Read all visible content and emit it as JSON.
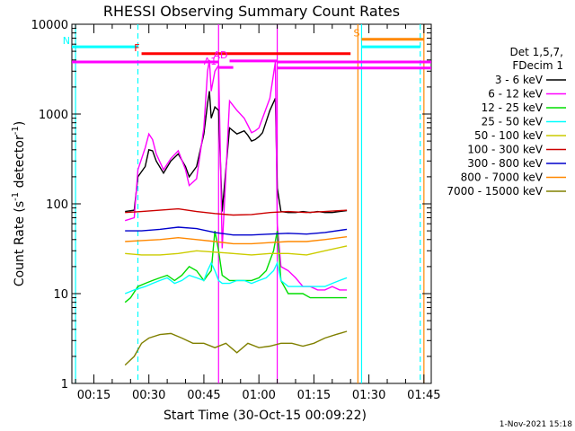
{
  "chart_data": {
    "type": "line",
    "title": "RHESSI Observing Summary Count Rates",
    "xlabel": "Start Time (30-Oct-15 00:09:22)",
    "ylabel": "Count Rate (s⁻¹ detector⁻¹)",
    "ylabel_base": "Count Rate (s",
    "ylabel_sup1": "-1",
    "ylabel_mid": " detector",
    "ylabel_sup2": "-1",
    "ylabel_end": ")",
    "y_scale": "log",
    "ylim": [
      1,
      10000
    ],
    "xlim_minutes": [
      9,
      107
    ],
    "x_ticks": [
      {
        "minute": 15,
        "label": "00:15"
      },
      {
        "minute": 30,
        "label": "00:30"
      },
      {
        "minute": 45,
        "label": "00:45"
      },
      {
        "minute": 60,
        "label": "01:00"
      },
      {
        "minute": 75,
        "label": "01:15"
      },
      {
        "minute": 90,
        "label": "01:30"
      },
      {
        "minute": 105,
        "label": "01:45"
      }
    ],
    "y_ticks": [
      {
        "value": 1,
        "label": "1"
      },
      {
        "value": 10,
        "label": "10"
      },
      {
        "value": 100,
        "label": "100"
      },
      {
        "value": 1000,
        "label": "1000"
      },
      {
        "value": 10000,
        "label": "10000"
      }
    ],
    "legend": {
      "header": [
        "Det 1,5,7,",
        "FDecim 1"
      ],
      "placement": "right"
    },
    "series": [
      {
        "name": "3 - 6 keV",
        "color": "#000000",
        "x": [
          23.5,
          26,
          27,
          29,
          30,
          31,
          32,
          34,
          36,
          38,
          40,
          41,
          43,
          45,
          46,
          46.5,
          47,
          48,
          49,
          50,
          52,
          54,
          56,
          57,
          58,
          59,
          60,
          61,
          63,
          64.5,
          65,
          66,
          68,
          70,
          72,
          74,
          76,
          78,
          80,
          82,
          84
        ],
        "y": [
          82,
          85,
          200,
          260,
          400,
          390,
          300,
          220,
          300,
          360,
          260,
          200,
          260,
          600,
          1300,
          1800,
          900,
          1200,
          1100,
          82,
          700,
          600,
          650,
          580,
          500,
          520,
          560,
          620,
          1100,
          1500,
          150,
          82,
          80,
          80,
          82,
          80,
          82,
          80,
          80,
          82,
          84
        ]
      },
      {
        "name": "6 - 12 keV",
        "color": "#ff00ff",
        "x": [
          23.5,
          26,
          27,
          29,
          30,
          31,
          32,
          34,
          36,
          38,
          40,
          41,
          43,
          45,
          46,
          46.5,
          47,
          48,
          49,
          50,
          52,
          54,
          56,
          57,
          58,
          59,
          60,
          61,
          63,
          64.5,
          65,
          66,
          68,
          70,
          72,
          74,
          76,
          78,
          80,
          82,
          84
        ],
        "y": [
          65,
          70,
          240,
          420,
          600,
          520,
          360,
          240,
          320,
          390,
          240,
          160,
          190,
          700,
          3000,
          4000,
          1800,
          3000,
          3500,
          32,
          1400,
          1100,
          900,
          750,
          620,
          650,
          700,
          900,
          1500,
          3800,
          60,
          20,
          18,
          15,
          12,
          12,
          11,
          11,
          12,
          11,
          11
        ]
      },
      {
        "name": "12 - 25 keV",
        "color": "#00dd00",
        "x": [
          23.5,
          25,
          27,
          29,
          31,
          33,
          35,
          37,
          39,
          41,
          43,
          45,
          46,
          47,
          48,
          49,
          50,
          52,
          54,
          56,
          58,
          60,
          62,
          64,
          65,
          66,
          68,
          70,
          72,
          74,
          76,
          78,
          80,
          82,
          84
        ],
        "y": [
          8,
          9,
          12,
          13,
          14,
          15,
          16,
          14,
          16,
          20,
          18,
          14,
          16,
          18,
          50,
          30,
          16,
          14,
          14,
          14,
          14,
          15,
          18,
          30,
          50,
          14,
          10,
          10,
          10,
          9,
          9,
          9,
          9,
          9,
          9
        ]
      },
      {
        "name": "25 - 50 keV",
        "color": "#00ffff",
        "x": [
          23.5,
          26,
          29,
          31,
          33,
          35,
          37,
          39,
          41,
          43,
          45,
          46,
          47,
          48,
          49,
          50,
          52,
          54,
          56,
          58,
          60,
          62,
          64,
          65,
          66,
          68,
          70,
          72,
          74,
          76,
          78,
          80,
          82,
          84
        ],
        "y": [
          10,
          11,
          12,
          13,
          14,
          15,
          13,
          14,
          16,
          15,
          14,
          18,
          22,
          18,
          14,
          13,
          13,
          14,
          14,
          13,
          14,
          15,
          18,
          22,
          14,
          12,
          12,
          12,
          12,
          12,
          12,
          13,
          14,
          15
        ]
      },
      {
        "name": "50 - 100 keV",
        "color": "#cccc00",
        "x": [
          23.5,
          28,
          33,
          38,
          43,
          48,
          53,
          58,
          63,
          68,
          73,
          78,
          84
        ],
        "y": [
          28,
          27,
          27,
          28,
          30,
          29,
          28,
          27,
          28,
          28,
          27,
          30,
          34
        ]
      },
      {
        "name": "100 - 300 keV",
        "color": "#cc0000",
        "x": [
          23.5,
          28,
          33,
          38,
          43,
          48,
          53,
          58,
          63,
          68,
          73,
          78,
          84
        ],
        "y": [
          80,
          82,
          85,
          88,
          82,
          78,
          75,
          76,
          80,
          82,
          80,
          82,
          85
        ]
      },
      {
        "name": "300 - 800 keV",
        "color": "#0000cc",
        "x": [
          23.5,
          28,
          33,
          38,
          43,
          48,
          53,
          58,
          63,
          68,
          73,
          78,
          84
        ],
        "y": [
          50,
          50,
          52,
          55,
          53,
          48,
          45,
          45,
          46,
          47,
          46,
          48,
          52
        ]
      },
      {
        "name": "800 - 7000 keV",
        "color": "#ff8800",
        "x": [
          23.5,
          28,
          33,
          38,
          43,
          48,
          53,
          58,
          63,
          68,
          73,
          78,
          84
        ],
        "y": [
          38,
          39,
          40,
          42,
          40,
          38,
          36,
          36,
          37,
          38,
          38,
          40,
          43
        ]
      },
      {
        "name": "7000 - 15000 keV",
        "color": "#808000",
        "x": [
          23.5,
          26,
          28,
          30,
          33,
          36,
          39,
          42,
          45,
          48,
          51,
          54,
          57,
          60,
          63,
          66,
          69,
          72,
          75,
          78,
          81,
          84
        ],
        "y": [
          1.6,
          2,
          2.8,
          3.2,
          3.5,
          3.6,
          3.2,
          2.8,
          2.8,
          2.5,
          2.8,
          2.2,
          2.8,
          2.5,
          2.6,
          2.8,
          2.8,
          2.6,
          2.8,
          3.2,
          3.5,
          3.8
        ]
      }
    ],
    "vertical_lines": [
      {
        "minute": 10,
        "color": "#00ffff",
        "style": "solid"
      },
      {
        "minute": 27,
        "color": "#00ffff",
        "style": "dashed"
      },
      {
        "minute": 49,
        "color": "#ff00ff",
        "style": "solid"
      },
      {
        "minute": 65,
        "color": "#ff00ff",
        "style": "solid"
      },
      {
        "minute": 87,
        "color": "#ff8800",
        "style": "solid"
      },
      {
        "minute": 88,
        "color": "#00ffff",
        "style": "solid"
      },
      {
        "minute": 104,
        "color": "#00ffff",
        "style": "dashed"
      },
      {
        "minute": 105,
        "color": "#ff8800",
        "style": "solid"
      }
    ],
    "flag_bars": [
      {
        "label": "N",
        "color": "#00ffff",
        "segments": [
          [
            9,
            27
          ],
          [
            88,
            104
          ]
        ],
        "y": 5600
      },
      {
        "label": "S",
        "color": "#ff8800",
        "segments": [
          [
            88,
            105
          ]
        ],
        "y": 6800
      },
      {
        "label": "F",
        "color": "#ff0000",
        "segments": [
          [
            28,
            85
          ]
        ],
        "y": 4700
      },
      {
        "label": "AD",
        "color": "#ff00ff",
        "segments": [
          [
            52,
            65
          ]
        ],
        "y": 3900
      },
      {
        "label": "A1",
        "color": "#ff00ff",
        "segments": [
          [
            49,
            53
          ]
        ],
        "y": 3300
      },
      {
        "label": "",
        "color": "#ff00ff",
        "segments": [
          [
            9,
            49
          ],
          [
            65,
            107
          ]
        ],
        "y": 3800
      },
      {
        "label": "",
        "color": "#ff00ff",
        "segments": [
          [
            65,
            107
          ]
        ],
        "y": 3250
      }
    ],
    "footer_date": "1-Nov-2021 15:18"
  }
}
